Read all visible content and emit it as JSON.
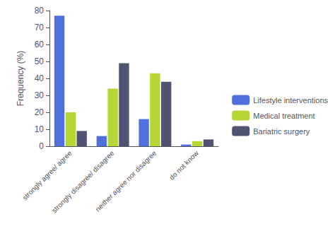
{
  "chart_data": {
    "type": "bar",
    "categories": [
      "strongly agree/ agree",
      "strongly disagree/ disagree",
      "neither agree nor disagree",
      "do not know"
    ],
    "series": [
      {
        "name": "Lifestyle interventions",
        "values": [
          77,
          6,
          16,
          1
        ]
      },
      {
        "name": "Medical treatment",
        "values": [
          20,
          34,
          43,
          3
        ]
      },
      {
        "name": "Bariatric surgery",
        "values": [
          9,
          49,
          38,
          4
        ]
      }
    ],
    "ylabel": "Frequency (%)",
    "ylim": [
      0,
      80
    ],
    "yticks": [
      0,
      10,
      20,
      30,
      40,
      50,
      60,
      70,
      80
    ],
    "grid": false,
    "legend": "right"
  }
}
